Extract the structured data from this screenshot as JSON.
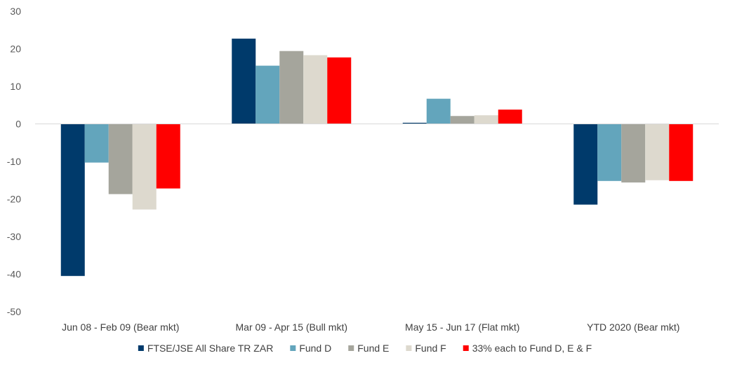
{
  "chart_data": {
    "type": "bar",
    "categories": [
      "Jun 08 - Feb 09 (Bear mkt)",
      "Mar 09 - Apr 15 (Bull mkt)",
      "May 15 - Jun 17 (Flat mkt)",
      "YTD 2020 (Bear mkt)"
    ],
    "series": [
      {
        "name": "FTSE/JSE All Share TR ZAR",
        "color": "#003A6B",
        "values": [
          -40.5,
          22.7,
          0.3,
          -21.5
        ]
      },
      {
        "name": "Fund D",
        "color": "#63A5BC",
        "values": [
          -10.3,
          15.5,
          6.7,
          -15.2
        ]
      },
      {
        "name": "Fund E",
        "color": "#A5A59C",
        "values": [
          -18.7,
          19.4,
          2.1,
          -15.6
        ]
      },
      {
        "name": "Fund F",
        "color": "#DDD9CE",
        "values": [
          -22.8,
          18.3,
          2.3,
          -15.0
        ]
      },
      {
        "name": "33% each to Fund D, E & F",
        "color": "#FF0000",
        "values": [
          -17.2,
          17.7,
          3.8,
          -15.2
        ]
      }
    ],
    "ylim": [
      -50,
      30
    ],
    "yticks": [
      "30",
      "20",
      "10",
      "0",
      "-10",
      "-20",
      "-30",
      "-40",
      "-50"
    ],
    "grid": false,
    "legend_position": "bottom"
  }
}
